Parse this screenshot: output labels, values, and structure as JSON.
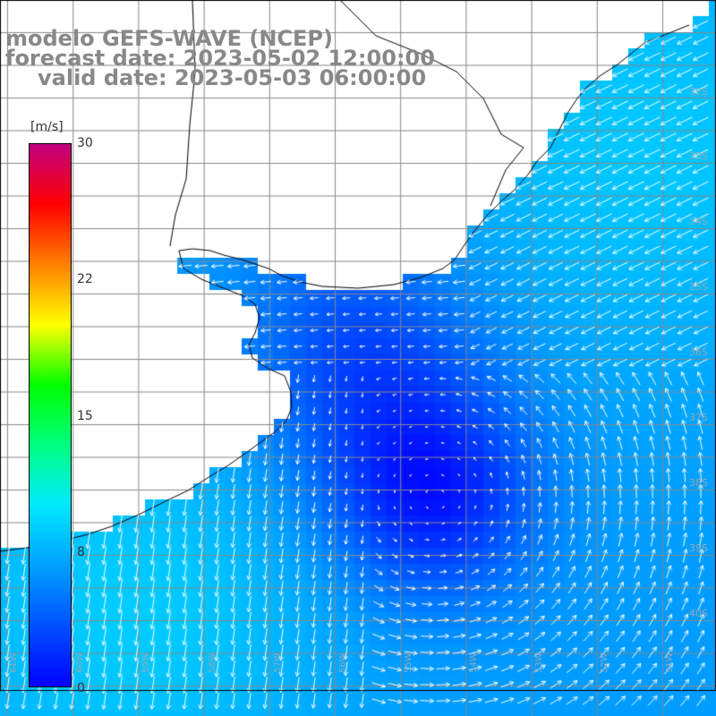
{
  "title": {
    "model": "modelo GEFS-WAVE (NCEP)",
    "forecast": "forecast date: 2023-05-02 12:00:00",
    "valid": "valid date: 2023-05-03 06:00:00"
  },
  "colorbar": {
    "unit": "[m/s]",
    "ticks": [
      "30",
      "22",
      "15",
      "8",
      "0"
    ],
    "min": 0,
    "max": 30,
    "colors": [
      "#0000ff",
      "#0050ff",
      "#00a0ff",
      "#00e8ff",
      "#00ff80",
      "#00ff00",
      "#ffff00",
      "#ff8000",
      "#ff0000",
      "#c00080"
    ]
  },
  "map": {
    "land_color": "#ffffff",
    "grid_color": "#888888",
    "coast_color": "#000000",
    "arrow_color": "#ffffff",
    "lat_labels": [
      "32S",
      "33S",
      "34S",
      "35S",
      "36S",
      "37S",
      "38S",
      "39S",
      "40S"
    ],
    "lon_labels": [
      "61W",
      "60W",
      "59W",
      "58W",
      "57W",
      "56W",
      "55W",
      "54W",
      "53W",
      "52W",
      "51W"
    ]
  }
}
